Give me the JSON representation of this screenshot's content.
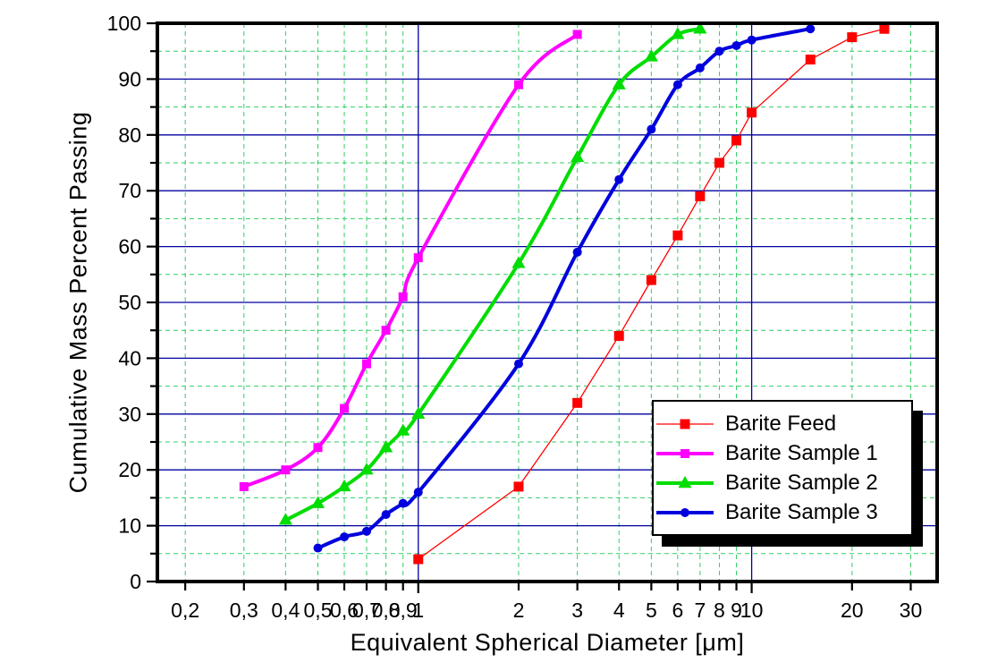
{
  "chart_data": {
    "type": "line",
    "title": "",
    "xlabel": "Equivalent Spherical Diameter [μm]",
    "ylabel": "Cumulative Mass Percent Passing",
    "x_scale": "log",
    "xlim": [
      0.165,
      36
    ],
    "ylim": [
      0,
      100
    ],
    "grid": {
      "major_color": "#0000A0",
      "minor_color": "#33CC66",
      "minor_dash": "5,4"
    },
    "frame_color": "#000000",
    "x_ticks": [
      {
        "v": 0.2,
        "label": "0,2"
      },
      {
        "v": 0.3,
        "label": "0,3"
      },
      {
        "v": 0.4,
        "label": "0,4"
      },
      {
        "v": 0.5,
        "label": "0,5"
      },
      {
        "v": 0.6,
        "label": "0,6"
      },
      {
        "v": 0.7,
        "label": "0,7"
      },
      {
        "v": 0.8,
        "label": "0,8"
      },
      {
        "v": 0.9,
        "label": "0,9"
      },
      {
        "v": 1,
        "label": "1"
      },
      {
        "v": 2,
        "label": "2"
      },
      {
        "v": 3,
        "label": "3"
      },
      {
        "v": 4,
        "label": "4"
      },
      {
        "v": 5,
        "label": "5"
      },
      {
        "v": 6,
        "label": "6"
      },
      {
        "v": 7,
        "label": "7"
      },
      {
        "v": 8,
        "label": "8"
      },
      {
        "v": 9,
        "label": "9"
      },
      {
        "v": 10,
        "label": "10"
      },
      {
        "v": 20,
        "label": "20"
      },
      {
        "v": 30,
        "label": "30"
      }
    ],
    "x_major_values": [
      1,
      10
    ],
    "y_major_ticks": [
      0,
      10,
      20,
      30,
      40,
      50,
      60,
      70,
      80,
      90,
      100
    ],
    "y_minor_ticks": [
      5,
      15,
      25,
      35,
      45,
      55,
      65,
      75,
      85,
      95
    ],
    "legend_position": "inside-right",
    "series": [
      {
        "name": "Barite Feed",
        "color": "#FF0000",
        "marker": "square",
        "marker_size": 11,
        "line_width": 1.3,
        "smooth": false,
        "points": [
          [
            1,
            4
          ],
          [
            2,
            17
          ],
          [
            3,
            32
          ],
          [
            4,
            44
          ],
          [
            5,
            54
          ],
          [
            6,
            62
          ],
          [
            7,
            69
          ],
          [
            8,
            75
          ],
          [
            9,
            79
          ],
          [
            10,
            84
          ],
          [
            15,
            93.5
          ],
          [
            20,
            97.5
          ],
          [
            25,
            99
          ]
        ]
      },
      {
        "name": "Barite Sample 1",
        "color": "#FF00FF",
        "marker": "square",
        "marker_size": 10,
        "line_width": 4,
        "smooth": true,
        "points": [
          [
            0.3,
            17
          ],
          [
            0.4,
            20
          ],
          [
            0.5,
            24
          ],
          [
            0.6,
            31
          ],
          [
            0.7,
            39
          ],
          [
            0.8,
            45
          ],
          [
            0.9,
            51
          ],
          [
            1,
            58
          ],
          [
            2,
            89
          ],
          [
            3,
            98
          ]
        ]
      },
      {
        "name": "Barite Sample 2",
        "color": "#00DD00",
        "marker": "triangle",
        "marker_size": 13,
        "line_width": 4,
        "smooth": true,
        "points": [
          [
            0.4,
            11
          ],
          [
            0.5,
            14
          ],
          [
            0.6,
            17
          ],
          [
            0.7,
            20
          ],
          [
            0.8,
            24
          ],
          [
            0.9,
            27
          ],
          [
            1,
            30
          ],
          [
            2,
            57
          ],
          [
            3,
            76
          ],
          [
            4,
            89
          ],
          [
            5,
            94
          ],
          [
            6,
            98
          ],
          [
            7,
            99
          ]
        ]
      },
      {
        "name": "Barite Sample 3",
        "color": "#0000DD",
        "marker": "circle",
        "marker_size": 10,
        "line_width": 4,
        "smooth": true,
        "points": [
          [
            0.5,
            6
          ],
          [
            0.6,
            8
          ],
          [
            0.7,
            9
          ],
          [
            0.8,
            12
          ],
          [
            0.9,
            14
          ],
          [
            1,
            16
          ],
          [
            2,
            39
          ],
          [
            3,
            59
          ],
          [
            4,
            72
          ],
          [
            5,
            81
          ],
          [
            6,
            89
          ],
          [
            7,
            92
          ],
          [
            8,
            95
          ],
          [
            9,
            96
          ],
          [
            10,
            97
          ],
          [
            15,
            99
          ]
        ]
      }
    ]
  }
}
